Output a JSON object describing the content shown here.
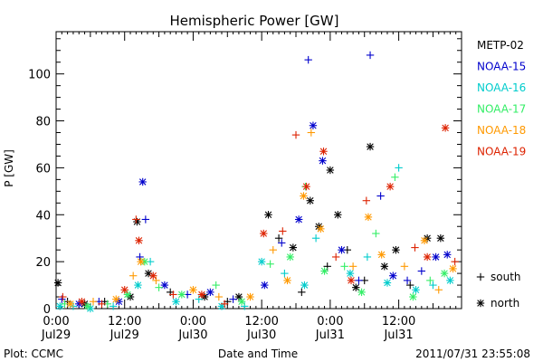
{
  "chart_data": {
    "type": "scatter",
    "title": "Hemispheric Power [GW]",
    "ylabel": "P [GW]",
    "xlabel": "Date and Time",
    "ylim": [
      0,
      118
    ],
    "y_ticks": [
      0,
      20,
      40,
      60,
      80,
      100
    ],
    "xlim": [
      "2011-07-29 00:00",
      "2011-07-31 23:00"
    ],
    "x_ticks": [
      {
        "x": "2011-07-29 00:00",
        "time": "0:00",
        "date": "Jul29"
      },
      {
        "x": "2011-07-29 12:00",
        "time": "12:00",
        "date": "Jul29"
      },
      {
        "x": "2011-07-30 00:00",
        "time": "0:00",
        "date": "Jul30"
      },
      {
        "x": "2011-07-30 12:00",
        "time": "12:00",
        "date": "Jul30"
      },
      {
        "x": "2011-07-31 00:00",
        "time": "0:00",
        "date": "Jul31"
      },
      {
        "x": "2011-07-31 12:00",
        "time": "12:00",
        "date": "Jul31"
      }
    ],
    "marker_legend": [
      {
        "symbol": "+",
        "label": "south"
      },
      {
        "symbol": "*",
        "label": "north"
      }
    ],
    "series": [
      {
        "name": "METP-02",
        "color": "#000000",
        "points": [
          {
            "x": "2011-07-29 00:20",
            "y": 11,
            "m": "*"
          },
          {
            "x": "2011-07-29 02:00",
            "y": 3,
            "m": "+"
          },
          {
            "x": "2011-07-29 05:00",
            "y": 2,
            "m": "*"
          },
          {
            "x": "2011-07-29 08:30",
            "y": 3,
            "m": "+"
          },
          {
            "x": "2011-07-29 13:00",
            "y": 5,
            "m": "*"
          },
          {
            "x": "2011-07-29 14:10",
            "y": 37,
            "m": "*"
          },
          {
            "x": "2011-07-29 16:10",
            "y": 15,
            "m": "*"
          },
          {
            "x": "2011-07-29 20:00",
            "y": 7,
            "m": "+"
          },
          {
            "x": "2011-07-30 02:00",
            "y": 5,
            "m": "*"
          },
          {
            "x": "2011-07-30 06:00",
            "y": 3,
            "m": "+"
          },
          {
            "x": "2011-07-30 08:00",
            "y": 5,
            "m": "*"
          },
          {
            "x": "2011-07-30 13:10",
            "y": 40,
            "m": "*"
          },
          {
            "x": "2011-07-30 15:00",
            "y": 30,
            "m": "+"
          },
          {
            "x": "2011-07-30 17:30",
            "y": 26,
            "m": "*"
          },
          {
            "x": "2011-07-30 19:00",
            "y": 7,
            "m": "+"
          },
          {
            "x": "2011-07-30 20:30",
            "y": 46,
            "m": "*"
          },
          {
            "x": "2011-07-30 22:00",
            "y": 35,
            "m": "*"
          },
          {
            "x": "2011-07-30 23:30",
            "y": 18,
            "m": "+"
          },
          {
            "x": "2011-07-31 00:00",
            "y": 59,
            "m": "*"
          },
          {
            "x": "2011-07-31 01:20",
            "y": 40,
            "m": "*"
          },
          {
            "x": "2011-07-31 03:00",
            "y": 25,
            "m": "+"
          },
          {
            "x": "2011-07-31 04:30",
            "y": 9,
            "m": "*"
          },
          {
            "x": "2011-07-31 06:00",
            "y": 12,
            "m": "+"
          },
          {
            "x": "2011-07-31 07:00",
            "y": 69,
            "m": "*"
          },
          {
            "x": "2011-07-31 09:30",
            "y": 18,
            "m": "*"
          },
          {
            "x": "2011-07-31 11:30",
            "y": 25,
            "m": "*"
          },
          {
            "x": "2011-07-31 14:00",
            "y": 10,
            "m": "+"
          },
          {
            "x": "2011-07-31 17:00",
            "y": 30,
            "m": "*"
          },
          {
            "x": "2011-07-31 19:20",
            "y": 30,
            "m": "*"
          }
        ]
      },
      {
        "name": "NOAA-15",
        "color": "#0000cc",
        "points": [
          {
            "x": "2011-07-29 01:00",
            "y": 4,
            "m": "+"
          },
          {
            "x": "2011-07-29 04:00",
            "y": 2,
            "m": "*"
          },
          {
            "x": "2011-07-29 07:30",
            "y": 3,
            "m": "+"
          },
          {
            "x": "2011-07-29 11:00",
            "y": 3,
            "m": "*"
          },
          {
            "x": "2011-07-29 14:40",
            "y": 22,
            "m": "+"
          },
          {
            "x": "2011-07-29 15:10",
            "y": 54,
            "m": "*"
          },
          {
            "x": "2011-07-29 15:40",
            "y": 38,
            "m": "+"
          },
          {
            "x": "2011-07-29 19:00",
            "y": 10,
            "m": "*"
          },
          {
            "x": "2011-07-29 23:00",
            "y": 6,
            "m": "+"
          },
          {
            "x": "2011-07-30 03:00",
            "y": 7,
            "m": "*"
          },
          {
            "x": "2011-07-30 07:00",
            "y": 4,
            "m": "+"
          },
          {
            "x": "2011-07-30 12:30",
            "y": 10,
            "m": "*"
          },
          {
            "x": "2011-07-30 15:30",
            "y": 28,
            "m": "+"
          },
          {
            "x": "2011-07-30 18:30",
            "y": 38,
            "m": "*"
          },
          {
            "x": "2011-07-30 20:10",
            "y": 106,
            "m": "+"
          },
          {
            "x": "2011-07-30 21:00",
            "y": 78,
            "m": "*"
          },
          {
            "x": "2011-07-30 22:40",
            "y": 63,
            "m": "*"
          },
          {
            "x": "2011-07-31 02:00",
            "y": 25,
            "m": "*"
          },
          {
            "x": "2011-07-31 05:00",
            "y": 12,
            "m": "+"
          },
          {
            "x": "2011-07-31 07:00",
            "y": 108,
            "m": "+"
          },
          {
            "x": "2011-07-31 08:50",
            "y": 48,
            "m": "+"
          },
          {
            "x": "2011-07-31 11:00",
            "y": 14,
            "m": "*"
          },
          {
            "x": "2011-07-31 13:30",
            "y": 12,
            "m": "+"
          },
          {
            "x": "2011-07-31 16:00",
            "y": 16,
            "m": "+"
          },
          {
            "x": "2011-07-31 18:30",
            "y": 22,
            "m": "*"
          },
          {
            "x": "2011-07-31 20:30",
            "y": 23,
            "m": "*"
          }
        ]
      },
      {
        "name": "NOAA-16",
        "color": "#00cccc",
        "points": [
          {
            "x": "2011-07-29 00:40",
            "y": 1,
            "m": "*"
          },
          {
            "x": "2011-07-29 03:00",
            "y": 1,
            "m": "+"
          },
          {
            "x": "2011-07-29 06:00",
            "y": 0,
            "m": "*"
          },
          {
            "x": "2011-07-29 10:00",
            "y": 1,
            "m": "+"
          },
          {
            "x": "2011-07-29 14:20",
            "y": 10,
            "m": "*"
          },
          {
            "x": "2011-07-29 16:30",
            "y": 20,
            "m": "+"
          },
          {
            "x": "2011-07-29 21:00",
            "y": 3,
            "m": "*"
          },
          {
            "x": "2011-07-30 01:00",
            "y": 4,
            "m": "+"
          },
          {
            "x": "2011-07-30 05:00",
            "y": 1,
            "m": "*"
          },
          {
            "x": "2011-07-30 09:00",
            "y": 1,
            "m": "+"
          },
          {
            "x": "2011-07-30 12:00",
            "y": 20,
            "m": "*"
          },
          {
            "x": "2011-07-30 16:00",
            "y": 15,
            "m": "+"
          },
          {
            "x": "2011-07-30 19:30",
            "y": 10,
            "m": "*"
          },
          {
            "x": "2011-07-30 21:30",
            "y": 30,
            "m": "+"
          },
          {
            "x": "2011-07-31 03:30",
            "y": 15,
            "m": "*"
          },
          {
            "x": "2011-07-31 06:30",
            "y": 22,
            "m": "+"
          },
          {
            "x": "2011-07-31 10:00",
            "y": 11,
            "m": "*"
          },
          {
            "x": "2011-07-31 12:00",
            "y": 60,
            "m": "+"
          },
          {
            "x": "2011-07-31 15:00",
            "y": 8,
            "m": "*"
          },
          {
            "x": "2011-07-31 18:00",
            "y": 10,
            "m": "+"
          },
          {
            "x": "2011-07-31 21:00",
            "y": 12,
            "m": "*"
          }
        ]
      },
      {
        "name": "NOAA-17",
        "color": "#33ee66",
        "points": [
          {
            "x": "2011-07-29 01:30",
            "y": 2,
            "m": "+"
          },
          {
            "x": "2011-07-29 05:30",
            "y": 1,
            "m": "*"
          },
          {
            "x": "2011-07-29 09:00",
            "y": 2,
            "m": "+"
          },
          {
            "x": "2011-07-29 12:30",
            "y": 6,
            "m": "*"
          },
          {
            "x": "2011-07-29 15:30",
            "y": 20,
            "m": "*"
          },
          {
            "x": "2011-07-29 18:00",
            "y": 9,
            "m": "+"
          },
          {
            "x": "2011-07-29 22:00",
            "y": 6,
            "m": "*"
          },
          {
            "x": "2011-07-30 04:00",
            "y": 10,
            "m": "+"
          },
          {
            "x": "2011-07-30 08:30",
            "y": 3,
            "m": "*"
          },
          {
            "x": "2011-07-30 13:30",
            "y": 19,
            "m": "+"
          },
          {
            "x": "2011-07-30 17:00",
            "y": 22,
            "m": "*"
          },
          {
            "x": "2011-07-30 19:40",
            "y": 52,
            "m": "+"
          },
          {
            "x": "2011-07-30 23:00",
            "y": 16,
            "m": "*"
          },
          {
            "x": "2011-07-31 02:30",
            "y": 18,
            "m": "+"
          },
          {
            "x": "2011-07-31 05:30",
            "y": 7,
            "m": "*"
          },
          {
            "x": "2011-07-31 08:00",
            "y": 32,
            "m": "+"
          },
          {
            "x": "2011-07-31 11:20",
            "y": 56,
            "m": "+"
          },
          {
            "x": "2011-07-31 14:30",
            "y": 5,
            "m": "*"
          },
          {
            "x": "2011-07-31 17:30",
            "y": 12,
            "m": "+"
          },
          {
            "x": "2011-07-31 20:00",
            "y": 15,
            "m": "*"
          }
        ]
      },
      {
        "name": "NOAA-18",
        "color": "#ff9900",
        "points": [
          {
            "x": "2011-07-29 02:30",
            "y": 2,
            "m": "*"
          },
          {
            "x": "2011-07-29 06:30",
            "y": 3,
            "m": "+"
          },
          {
            "x": "2011-07-29 10:30",
            "y": 4,
            "m": "*"
          },
          {
            "x": "2011-07-29 13:30",
            "y": 14,
            "m": "+"
          },
          {
            "x": "2011-07-29 14:50",
            "y": 20,
            "m": "*"
          },
          {
            "x": "2011-07-29 17:30",
            "y": 12,
            "m": "+"
          },
          {
            "x": "2011-07-30 00:00",
            "y": 8,
            "m": "*"
          },
          {
            "x": "2011-07-30 04:30",
            "y": 5,
            "m": "+"
          },
          {
            "x": "2011-07-30 10:00",
            "y": 5,
            "m": "*"
          },
          {
            "x": "2011-07-30 14:00",
            "y": 25,
            "m": "+"
          },
          {
            "x": "2011-07-30 16:30",
            "y": 12,
            "m": "*"
          },
          {
            "x": "2011-07-30 19:20",
            "y": 48,
            "m": "*"
          },
          {
            "x": "2011-07-30 20:40",
            "y": 75,
            "m": "+"
          },
          {
            "x": "2011-07-30 22:20",
            "y": 34,
            "m": "*"
          },
          {
            "x": "2011-07-31 04:00",
            "y": 18,
            "m": "+"
          },
          {
            "x": "2011-07-31 06:40",
            "y": 39,
            "m": "*"
          },
          {
            "x": "2011-07-31 09:00",
            "y": 23,
            "m": "*"
          },
          {
            "x": "2011-07-31 13:00",
            "y": 18,
            "m": "+"
          },
          {
            "x": "2011-07-31 16:30",
            "y": 29,
            "m": "*"
          },
          {
            "x": "2011-07-31 19:00",
            "y": 8,
            "m": "+"
          },
          {
            "x": "2011-07-31 21:30",
            "y": 17,
            "m": "*"
          }
        ]
      },
      {
        "name": "NOAA-19",
        "color": "#dd2200",
        "points": [
          {
            "x": "2011-07-29 01:10",
            "y": 5,
            "m": "+"
          },
          {
            "x": "2011-07-29 04:30",
            "y": 3,
            "m": "*"
          },
          {
            "x": "2011-07-29 08:00",
            "y": 2,
            "m": "+"
          },
          {
            "x": "2011-07-29 12:00",
            "y": 8,
            "m": "*"
          },
          {
            "x": "2011-07-29 14:00",
            "y": 38,
            "m": "+"
          },
          {
            "x": "2011-07-29 14:30",
            "y": 29,
            "m": "*"
          },
          {
            "x": "2011-07-29 17:00",
            "y": 14,
            "m": "*"
          },
          {
            "x": "2011-07-29 20:30",
            "y": 6,
            "m": "+"
          },
          {
            "x": "2011-07-30 01:30",
            "y": 6,
            "m": "*"
          },
          {
            "x": "2011-07-30 05:30",
            "y": 2,
            "m": "+"
          },
          {
            "x": "2011-07-30 12:20",
            "y": 32,
            "m": "*"
          },
          {
            "x": "2011-07-30 15:40",
            "y": 33,
            "m": "+"
          },
          {
            "x": "2011-07-30 18:00",
            "y": 74,
            "m": "+"
          },
          {
            "x": "2011-07-30 19:50",
            "y": 52,
            "m": "*"
          },
          {
            "x": "2011-07-30 22:50",
            "y": 67,
            "m": "*"
          },
          {
            "x": "2011-07-31 01:00",
            "y": 22,
            "m": "+"
          },
          {
            "x": "2011-07-31 03:40",
            "y": 12,
            "m": "*"
          },
          {
            "x": "2011-07-31 06:20",
            "y": 46,
            "m": "+"
          },
          {
            "x": "2011-07-31 10:30",
            "y": 52,
            "m": "*"
          },
          {
            "x": "2011-07-31 14:50",
            "y": 26,
            "m": "+"
          },
          {
            "x": "2011-07-31 17:00",
            "y": 22,
            "m": "*"
          },
          {
            "x": "2011-07-31 20:10",
            "y": 77,
            "m": "*"
          },
          {
            "x": "2011-07-31 21:50",
            "y": 20,
            "m": "+"
          }
        ]
      }
    ]
  },
  "footer": {
    "plot_credit": "Plot: CCMC",
    "timestamp": "2011/07/31  23:55:08"
  }
}
